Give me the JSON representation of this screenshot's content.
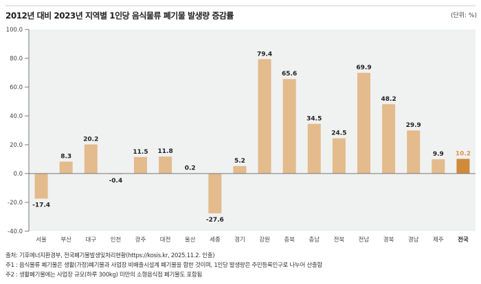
{
  "title": "2012년 대비 2023년 지역별 1인당 음식물류 폐기물 발생량 증감률",
  "unit": "(단위: %)",
  "colors": {
    "bar": "#e3bb8c",
    "highlight": "#d08a3a",
    "plot_bg": "#f0f1f1",
    "highlight_label": "#d9954a"
  },
  "chart_data": {
    "type": "bar",
    "categories": [
      "서울",
      "부산",
      "대구",
      "인천",
      "광주",
      "대전",
      "울산",
      "세종",
      "경기",
      "강원",
      "충북",
      "충남",
      "전북",
      "전남",
      "경북",
      "경남",
      "제주",
      "전국"
    ],
    "values": [
      -17.4,
      8.3,
      20.2,
      -0.4,
      11.5,
      11.8,
      0.2,
      -27.6,
      5.2,
      79.4,
      65.6,
      34.5,
      24.5,
      69.9,
      48.2,
      29.9,
      9.9,
      10.2
    ],
    "highlight": "전국",
    "ylim": [
      -40,
      100
    ],
    "yticks": [
      "100.0",
      "80.0",
      "60.0",
      "40.0",
      "20.0",
      "0.0",
      "-20.0",
      "-40.0"
    ],
    "ytick_values": [
      100,
      80,
      60,
      40,
      20,
      0,
      -20,
      -40
    ],
    "grid": false
  },
  "notes": [
    "출처: 기후에너지환경부, 전국폐기물발생및처리현황(https://kosis.kr, 2025.11.2. 인출)",
    "주1 : 음식물류 폐기물은 생활(가정)폐기물과 사업장 비배출시설계 폐기물을 합한 것이며, 1인당 발생량은 주민등록인구로 나누어 산출함",
    "주2 : 생활폐기물에는 사업장 규모(하루 300kg) 미만의 소형음식점 폐기물도 포함됨"
  ]
}
